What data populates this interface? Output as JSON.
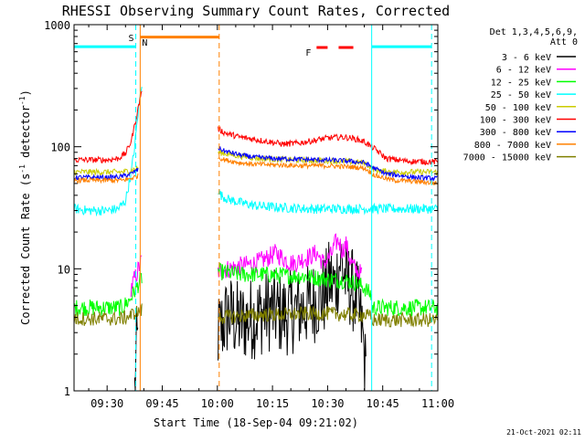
{
  "chart_data": {
    "type": "line",
    "title": "RHESSI Observing Summary Count Rates, Corrected",
    "xlabel": "Start Time (18-Sep-04 09:21:02)",
    "ylabel": "Corrected Count Rate (s-1 detector-1)",
    "ylabel_parts": {
      "main": "Corrected Count Rate (s",
      "sup1": "-1",
      "mid": " detector",
      "sup2": "-1",
      "end": ")"
    },
    "x_unit": "minutes after 09:00 UT",
    "xlim": [
      21,
      120
    ],
    "xticks": [
      {
        "value": 30,
        "label": "09:30"
      },
      {
        "value": 45,
        "label": "09:45"
      },
      {
        "value": 60,
        "label": "10:00"
      },
      {
        "value": 75,
        "label": "10:15"
      },
      {
        "value": 90,
        "label": "10:30"
      },
      {
        "value": 105,
        "label": "10:45"
      },
      {
        "value": 120,
        "label": "11:00"
      }
    ],
    "yscale": "log",
    "ylim": [
      1,
      1000
    ],
    "yticks": [
      {
        "value": 1,
        "label": "1"
      },
      {
        "value": 10,
        "label": "10"
      },
      {
        "value": 100,
        "label": "100"
      },
      {
        "value": 1000,
        "label": "1000"
      }
    ],
    "legend": {
      "placement": "right",
      "header": [
        "Det 1,3,4,5,6,9,",
        "Att 0"
      ],
      "entries": [
        {
          "label": "3 - 6 keV",
          "color": "#000000"
        },
        {
          "label": "6 - 12 keV",
          "color": "#ff00ff"
        },
        {
          "label": "12 - 25 keV",
          "color": "#00ff00"
        },
        {
          "label": "25 - 50 keV",
          "color": "#00ffff"
        },
        {
          "label": "50 - 100 keV",
          "color": "#cccc00"
        },
        {
          "label": "100 - 300 keV",
          "color": "#ff0000"
        },
        {
          "label": "300 - 800 keV",
          "color": "#0000ff"
        },
        {
          "label": "800 - 7000 keV",
          "color": "#ff8000"
        },
        {
          "label": "7000 - 15000 keV",
          "color": "#808000"
        }
      ]
    },
    "series": [
      {
        "name": "3 - 6 keV",
        "color": "#000000",
        "noise": 0.35,
        "segments": [
          {
            "x": [
              37.5,
              38.0,
              38.5
            ],
            "y": [
              1.0,
              2.2,
              2.6
            ]
          },
          {
            "x": [
              60.2,
              63,
              66,
              70,
              74,
              78,
              82,
              85,
              87,
              89,
              90.5,
              92,
              93.5,
              95,
              96.5,
              98,
              99.5,
              100.5
            ],
            "y": [
              3.0,
              4.2,
              3.6,
              4.0,
              4.6,
              4.2,
              4.6,
              5.0,
              5.6,
              6.0,
              8.0,
              7.0,
              12.0,
              8.0,
              7.0,
              5.5,
              3.0,
              1.2
            ]
          }
        ]
      },
      {
        "name": "6 - 12 keV",
        "color": "#ff00ff",
        "noise": 0.08,
        "segments": [
          {
            "x": [
              36.5,
              38.0,
              39.5
            ],
            "y": [
              7.0,
              9.0,
              12.0
            ]
          },
          {
            "x": [
              60.2,
              63,
              66,
              70,
              73,
              76,
              79,
              81,
              83,
              85,
              87,
              89,
              91,
              92,
              93,
              94,
              95,
              96,
              97,
              98,
              99.5
            ],
            "y": [
              9.5,
              10.0,
              10.5,
              11.0,
              12.0,
              13.5,
              11.5,
              11.0,
              12.0,
              12.5,
              13.5,
              11.0,
              13.0,
              16.0,
              17.0,
              14.0,
              16.0,
              12.0,
              10.5,
              9.5,
              9.0
            ]
          }
        ]
      },
      {
        "name": "12 - 25 keV",
        "color": "#00ff00",
        "noise": 0.07,
        "segments": [
          {
            "x": [
              21,
              25,
              30,
              34,
              36,
              38,
              39.5
            ],
            "y": [
              4.8,
              4.8,
              4.8,
              4.8,
              5.5,
              7.0,
              8.5
            ]
          },
          {
            "x": [
              60.2,
              66,
              72,
              78,
              84,
              90,
              95,
              98,
              100,
              102
            ],
            "y": [
              9.5,
              9.0,
              9.0,
              8.8,
              8.7,
              8.2,
              8.0,
              7.6,
              7.0,
              6.0
            ]
          },
          {
            "x": [
              102,
              108,
              114,
              120
            ],
            "y": [
              4.8,
              4.8,
              4.8,
              4.8
            ]
          }
        ]
      },
      {
        "name": "25 - 50 keV",
        "color": "#00ffff",
        "noise": 0.04,
        "segments": [
          {
            "x": [
              21,
              25,
              30,
              33,
              35,
              36.5,
              37.5,
              38.5,
              39.5
            ],
            "y": [
              31,
              30,
              30,
              31,
              36,
              60,
              100,
              200,
              340
            ]
          },
          {
            "x": [
              60.2,
              61,
              63,
              66,
              70,
              75,
              80,
              85,
              90,
              95,
              100,
              102,
              105,
              110,
              115,
              120
            ],
            "y": [
              44,
              40,
              37,
              35,
              33,
              32,
              31.5,
              31,
              31,
              31,
              31,
              31,
              31,
              31,
              31,
              31
            ]
          }
        ]
      },
      {
        "name": "50 - 100 keV",
        "color": "#cccc00",
        "noise": 0.025,
        "segments": [
          {
            "x": [
              21,
              25,
              30,
              34,
              36.5,
              38.5
            ],
            "y": [
              62,
              62,
              62,
              62,
              64,
              67
            ]
          },
          {
            "x": [
              60.2,
              66,
              72,
              80,
              90,
              100,
              103,
              108,
              114,
              120
            ],
            "y": [
              90,
              84,
              80,
              78,
              77,
              74,
              64,
              62,
              62,
              62
            ]
          }
        ]
      },
      {
        "name": "100 - 300 keV",
        "color": "#ff0000",
        "noise": 0.025,
        "segments": [
          {
            "x": [
              21,
              25,
              30,
              33,
              35,
              36.5,
              37.5,
              38.5,
              39.5
            ],
            "y": [
              78,
              78,
              78,
              80,
              88,
              110,
              150,
              210,
              300
            ]
          },
          {
            "x": [
              60.2,
              62,
              66,
              70,
              74,
              78,
              82,
              86,
              90,
              94,
              97,
              100,
              103,
              106,
              112,
              120
            ],
            "y": [
              140,
              130,
              120,
              115,
              110,
              105,
              107,
              112,
              118,
              120,
              117,
              110,
              95,
              80,
              76,
              75
            ]
          }
        ]
      },
      {
        "name": "300 - 800 keV",
        "color": "#0000ff",
        "noise": 0.02,
        "segments": [
          {
            "x": [
              21,
              25,
              30,
              34,
              36.5,
              38.5
            ],
            "y": [
              56,
              56,
              56,
              57,
              60,
              65
            ]
          },
          {
            "x": [
              60.2,
              62,
              66,
              70,
              76,
              82,
              88,
              94,
              100,
              103,
              106,
              110,
              114,
              120
            ],
            "y": [
              98,
              92,
              86,
              82,
              80,
              79,
              78,
              77,
              74,
              66,
              60,
              58,
              56,
              55
            ]
          }
        ]
      },
      {
        "name": "800 - 7000 keV",
        "color": "#ff8000",
        "noise": 0.02,
        "segments": [
          {
            "x": [
              21,
              25,
              30,
              34,
              36.5,
              38.5
            ],
            "y": [
              53,
              53,
              53,
              53,
              55,
              58
            ]
          },
          {
            "x": [
              60.2,
              62,
              66,
              70,
              76,
              82,
              88,
              94,
              100,
              103,
              108,
              114,
              120
            ],
            "y": [
              82,
              78,
              74,
              72,
              71,
              70,
              70,
              69,
              67,
              58,
              53,
              52,
              50
            ]
          }
        ]
      },
      {
        "name": "7000 - 15000 keV",
        "color": "#808000",
        "noise": 0.06,
        "segments": [
          {
            "x": [
              21,
              25,
              30,
              34,
              36,
              38,
              39.5
            ],
            "y": [
              3.9,
              3.9,
              3.9,
              3.9,
              4.1,
              4.4,
              4.6
            ]
          },
          {
            "x": [
              60.2,
              66,
              72,
              78,
              84,
              90,
              96,
              100,
              102
            ],
            "y": [
              4.0,
              4.1,
              4.2,
              4.2,
              4.3,
              4.3,
              4.2,
              4.2,
              4.0
            ]
          },
          {
            "x": [
              102,
              108,
              114,
              120
            ],
            "y": [
              3.8,
              3.8,
              3.8,
              3.8
            ]
          }
        ]
      }
    ],
    "annotations": {
      "night": [
        {
          "x_start": 21,
          "x_end": 37.8,
          "color": "#00ffff"
        },
        {
          "x_start": 102,
          "x_end": 118.3,
          "color": "#00ffff"
        }
      ],
      "saa": [
        {
          "x_start": 39.0,
          "x_end": 60.5,
          "color": "#ff8000"
        }
      ],
      "flare": [
        {
          "x_start": 87,
          "x_end": 90,
          "color": "#ff0000"
        },
        {
          "x_start": 93,
          "x_end": 97,
          "color": "#ff0000"
        }
      ],
      "vlines": [
        {
          "x": 37.8,
          "color": "#00ffff",
          "dashed": true
        },
        {
          "x": 39.0,
          "color": "#ff8000",
          "dashed": false
        },
        {
          "x": 60.5,
          "color": "#ff8000",
          "dashed": true
        },
        {
          "x": 102.0,
          "color": "#00ffff",
          "dashed": false
        },
        {
          "x": 118.3,
          "color": "#00ffff",
          "dashed": true
        }
      ],
      "labels": [
        {
          "text": "S",
          "color": "#ff8000"
        },
        {
          "text": "N",
          "color": "#00ffff"
        },
        {
          "text": "F",
          "color": "#ff0000"
        }
      ]
    },
    "footer_timestamp": "21-Oct-2021 02:11"
  }
}
